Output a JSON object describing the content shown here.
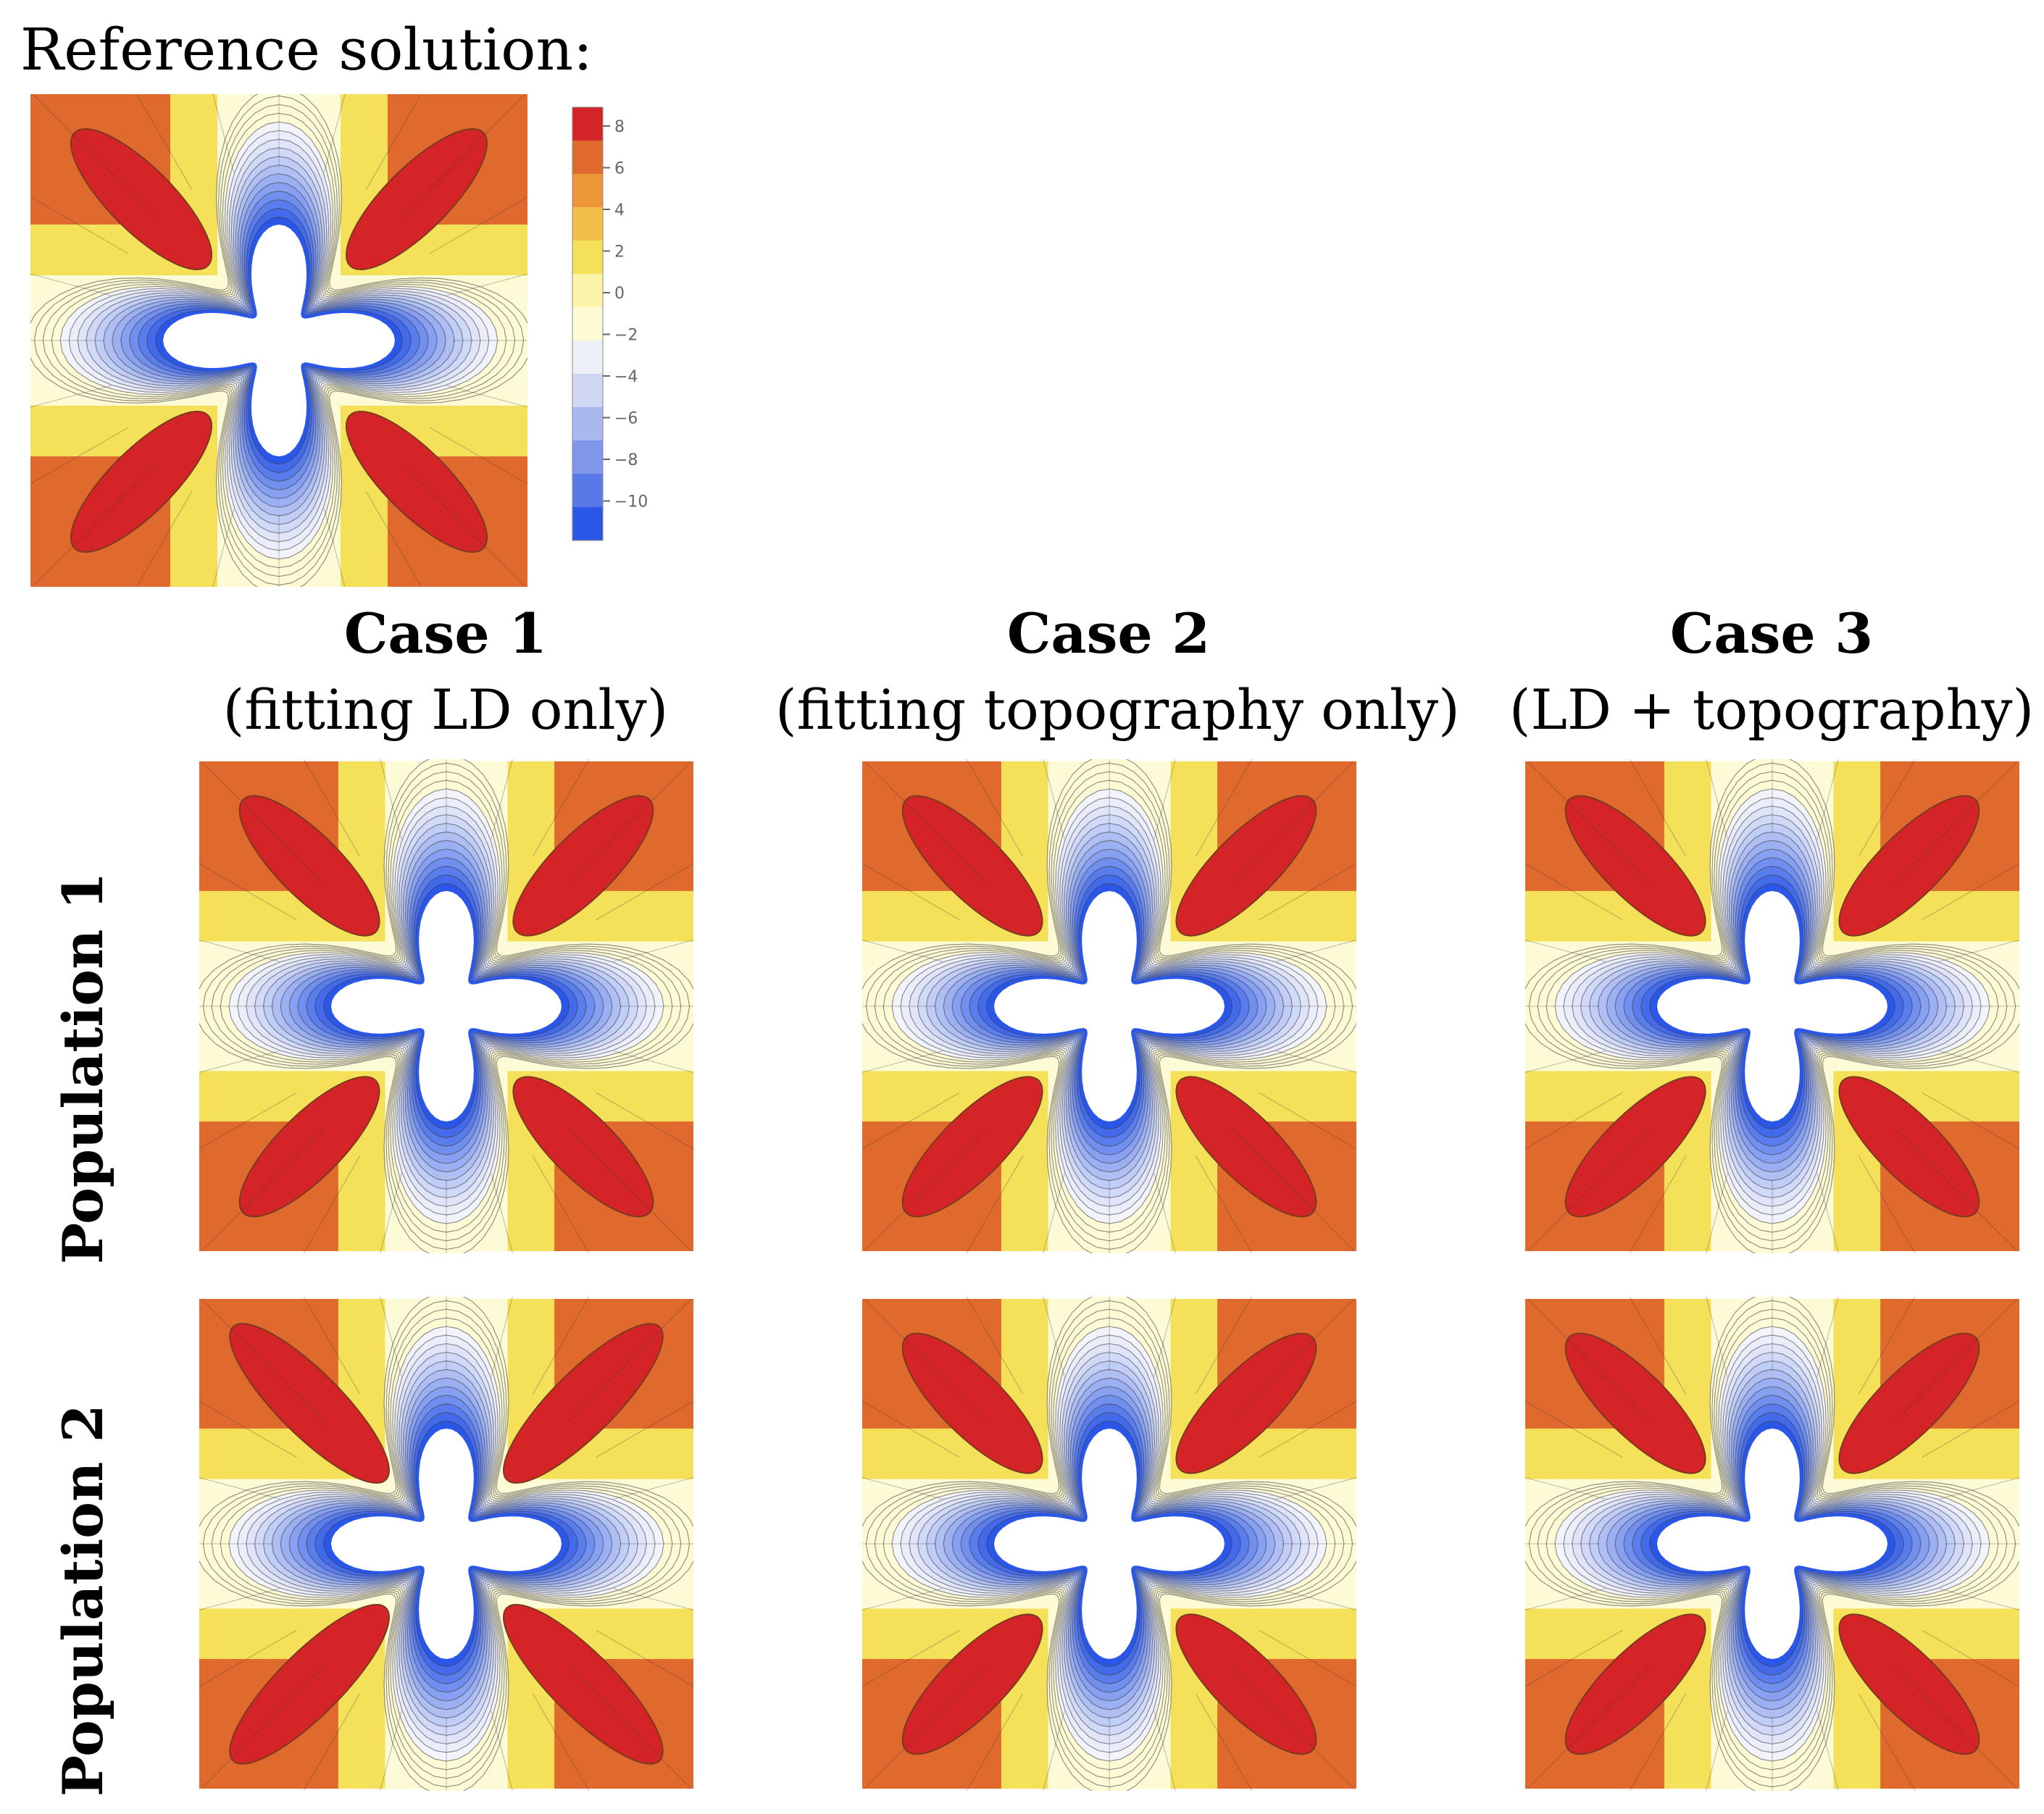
{
  "reference_title": "Reference solution:",
  "colorbar": {
    "ticks": [
      "8",
      "6",
      "4",
      "2",
      "0",
      "−10"
    ]
  },
  "colorbar_ticks": [
    {
      "value": 8,
      "label": "8"
    },
    {
      "value": 6,
      "label": "6"
    },
    {
      "value": 4,
      "label": "4"
    },
    {
      "value": 2,
      "label": "2"
    },
    {
      "value": 0,
      "label": "0"
    },
    {
      "value": -2,
      "label": "−2"
    },
    {
      "value": -4,
      "label": "−4"
    },
    {
      "value": -6,
      "label": "−6"
    },
    {
      "value": -8,
      "label": "−8"
    },
    {
      "value": -10,
      "label": "−10"
    }
  ],
  "cases": [
    {
      "title": "Case 1",
      "subtitle": "(fitting LD only)"
    },
    {
      "title": "Case 2",
      "subtitle": "(fitting topography only)"
    },
    {
      "title": "Case 3",
      "subtitle": "(LD + topography)"
    }
  ],
  "populations": [
    {
      "label": "Population 1"
    },
    {
      "label": "Population 2"
    }
  ],
  "colors": {
    "red": "#d42428",
    "orange": "#e06a2e",
    "yellow": "#f5e05a",
    "pale": "#fdfbd6",
    "blue": "#2a57e8"
  }
}
